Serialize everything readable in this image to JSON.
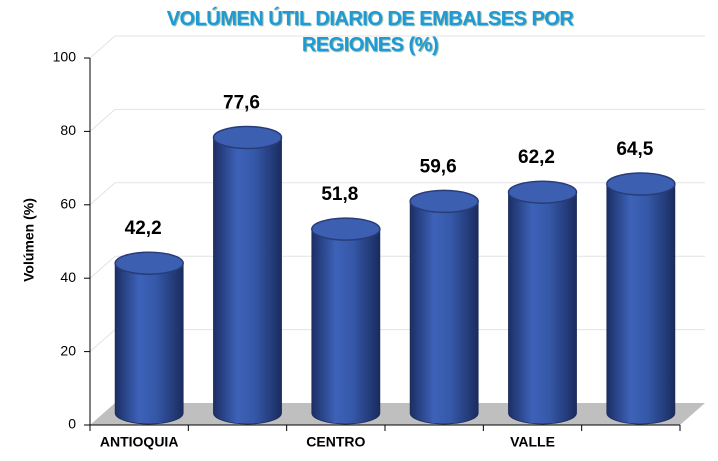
{
  "chart_data": {
    "type": "bar",
    "title": "VOLÚMEN ÚTIL DIARIO DE EMBALSES POR REGIONES (%)",
    "y_label": "Volúmen (%)",
    "categories": [
      "ANTIOQUIA",
      null,
      "CENTRO",
      null,
      "VALLE",
      null
    ],
    "values": [
      42.2,
      77.6,
      51.8,
      59.6,
      62.2,
      64.5
    ],
    "value_labels": [
      "42,2",
      "77,6",
      "51,8",
      "59,6",
      "62,2",
      "64,5"
    ],
    "color": "#2e4f9e",
    "ylim": [
      0,
      100
    ],
    "yticks": [
      0,
      20,
      40,
      60,
      80,
      100
    ],
    "grid": true
  }
}
